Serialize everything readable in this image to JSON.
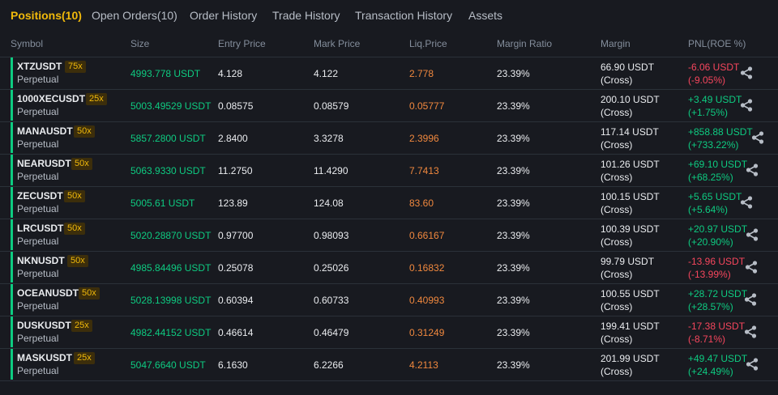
{
  "tabs": [
    {
      "label": "Positions(10)",
      "active": true
    },
    {
      "label": "Open Orders(10)",
      "active": false
    },
    {
      "label": "Order History",
      "active": false
    },
    {
      "label": "Trade History",
      "active": false
    },
    {
      "label": "Transaction History",
      "active": false
    },
    {
      "label": "Assets",
      "active": false
    }
  ],
  "columns": [
    "Symbol",
    "Size",
    "Entry Price",
    "Mark Price",
    "Liq.Price",
    "Margin Ratio",
    "Margin",
    "PNL(ROE %)"
  ],
  "colors": {
    "accent": "#f0b90b",
    "positive": "#0ecb81",
    "negative": "#f6465d",
    "liq": "#f0883e"
  },
  "share_icon": "share-icon",
  "positions": [
    {
      "symbol": "XTZUSDT",
      "sub": "Perpetual",
      "leverage": "75x",
      "size": "4993.778 USDT",
      "entry": "4.128",
      "mark": "4.122",
      "liq": "2.778",
      "ratio": "23.39%",
      "margin": "66.90 USDT",
      "margin_mode": "(Cross)",
      "pnl": "-6.06 USDT",
      "roe": "(-9.05%)",
      "positive": false
    },
    {
      "symbol": "1000XECUSDT",
      "sub": "Perpetual",
      "leverage": "25x",
      "size": "5003.49529 USDT",
      "entry": "0.08575",
      "mark": "0.08579",
      "liq": "0.05777",
      "ratio": "23.39%",
      "margin": "200.10 USDT",
      "margin_mode": "(Cross)",
      "pnl": "+3.49 USDT",
      "roe": "(+1.75%)",
      "positive": true
    },
    {
      "symbol": "MANAUSDT",
      "sub": "Perpetual",
      "leverage": "50x",
      "size": "5857.2800 USDT",
      "entry": "2.8400",
      "mark": "3.3278",
      "liq": "2.3996",
      "ratio": "23.39%",
      "margin": "117.14 USDT",
      "margin_mode": "(Cross)",
      "pnl": "+858.88 USDT",
      "roe": "(+733.22%)",
      "positive": true
    },
    {
      "symbol": "NEARUSDT",
      "sub": "Perpetual",
      "leverage": "50x",
      "size": "5063.9330 USDT",
      "entry": "11.2750",
      "mark": "11.4290",
      "liq": "7.7413",
      "ratio": "23.39%",
      "margin": "101.26 USDT",
      "margin_mode": "(Cross)",
      "pnl": "+69.10 USDT",
      "roe": "(+68.25%)",
      "positive": true
    },
    {
      "symbol": "ZECUSDT",
      "sub": "Perpetual",
      "leverage": "50x",
      "size": "5005.61 USDT",
      "entry": "123.89",
      "mark": "124.08",
      "liq": "83.60",
      "ratio": "23.39%",
      "margin": "100.15 USDT",
      "margin_mode": "(Cross)",
      "pnl": "+5.65 USDT",
      "roe": "(+5.64%)",
      "positive": true
    },
    {
      "symbol": "LRCUSDT",
      "sub": "Perpetual",
      "leverage": "50x",
      "size": "5020.28870 USDT",
      "entry": "0.97700",
      "mark": "0.98093",
      "liq": "0.66167",
      "ratio": "23.39%",
      "margin": "100.39 USDT",
      "margin_mode": "(Cross)",
      "pnl": "+20.97 USDT",
      "roe": "(+20.90%)",
      "positive": true
    },
    {
      "symbol": "NKNUSDT",
      "sub": "Perpetual",
      "leverage": "50x",
      "size": "4985.84496 USDT",
      "entry": "0.25078",
      "mark": "0.25026",
      "liq": "0.16832",
      "ratio": "23.39%",
      "margin": "99.79 USDT",
      "margin_mode": "(Cross)",
      "pnl": "-13.96 USDT",
      "roe": "(-13.99%)",
      "positive": false
    },
    {
      "symbol": "OCEANUSDT",
      "sub": "Perpetual",
      "leverage": "50x",
      "size": "5028.13998 USDT",
      "entry": "0.60394",
      "mark": "0.60733",
      "liq": "0.40993",
      "ratio": "23.39%",
      "margin": "100.55 USDT",
      "margin_mode": "(Cross)",
      "pnl": "+28.72 USDT",
      "roe": "(+28.57%)",
      "positive": true
    },
    {
      "symbol": "DUSKUSDT",
      "sub": "Perpetual",
      "leverage": "25x",
      "size": "4982.44152 USDT",
      "entry": "0.46614",
      "mark": "0.46479",
      "liq": "0.31249",
      "ratio": "23.39%",
      "margin": "199.41 USDT",
      "margin_mode": "(Cross)",
      "pnl": "-17.38 USDT",
      "roe": "(-8.71%)",
      "positive": false
    },
    {
      "symbol": "MASKUSDT",
      "sub": "Perpetual",
      "leverage": "25x",
      "size": "5047.6640 USDT",
      "entry": "6.1630",
      "mark": "6.2266",
      "liq": "4.2113",
      "ratio": "23.39%",
      "margin": "201.99 USDT",
      "margin_mode": "(Cross)",
      "pnl": "+49.47 USDT",
      "roe": "(+24.49%)",
      "positive": true
    }
  ]
}
